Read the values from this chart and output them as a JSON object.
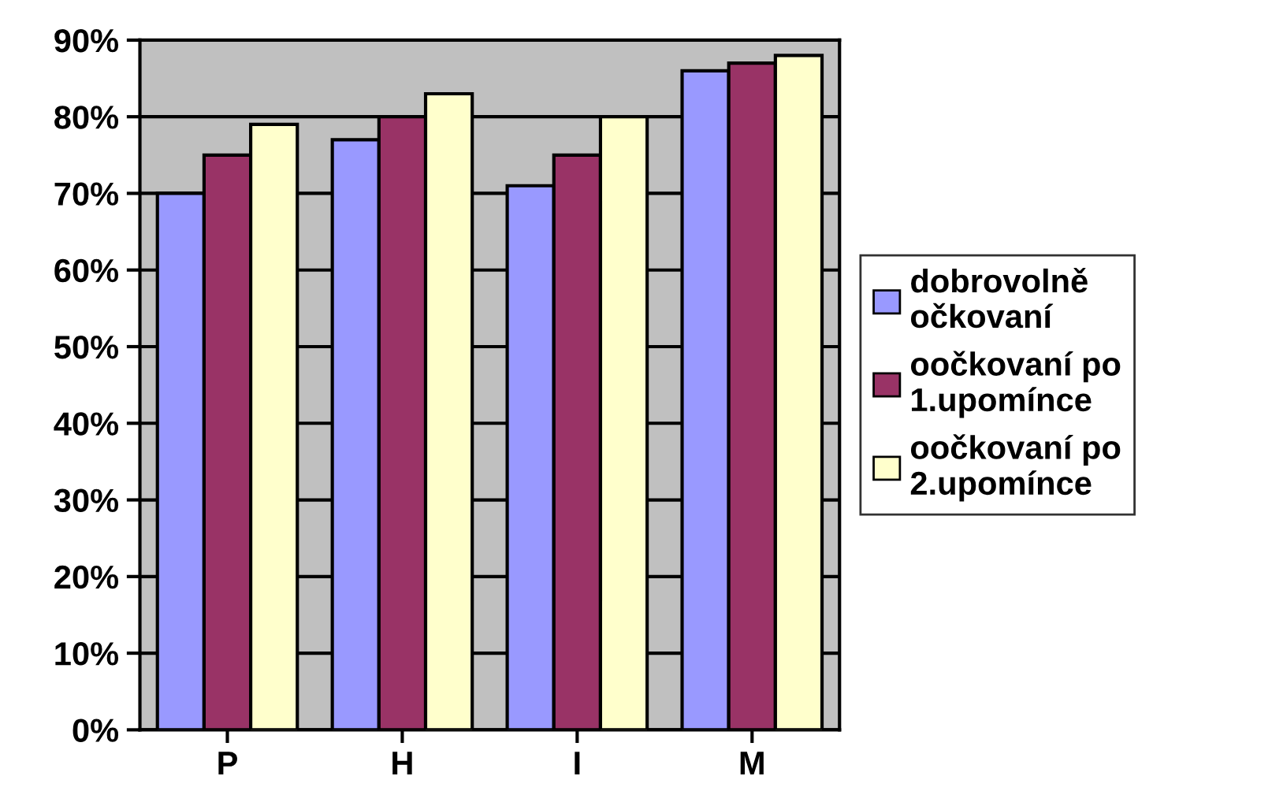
{
  "chart_data": {
    "type": "bar",
    "categories": [
      "P",
      "H",
      "I",
      "M"
    ],
    "series": [
      {
        "name": "dobrovolně očkovaní",
        "color": "#9999ff",
        "values": [
          70,
          77,
          71,
          86
        ]
      },
      {
        "name": "oočkovaní po 1.upomínce",
        "color": "#993366",
        "values": [
          75,
          80,
          75,
          87
        ]
      },
      {
        "name": "oočkovaní po 2.upomínce",
        "color": "#ffffcc",
        "values": [
          79,
          83,
          80,
          88
        ]
      }
    ],
    "ylim": [
      0,
      90
    ],
    "yticks": [
      {
        "value": 0,
        "label": "0%"
      },
      {
        "value": 10,
        "label": "10%"
      },
      {
        "value": 20,
        "label": "20%"
      },
      {
        "value": 30,
        "label": "30%"
      },
      {
        "value": 40,
        "label": "40%"
      },
      {
        "value": 50,
        "label": "50%"
      },
      {
        "value": 60,
        "label": "60%"
      },
      {
        "value": 70,
        "label": "70%"
      },
      {
        "value": 80,
        "label": "80%"
      },
      {
        "value": 90,
        "label": "90%"
      }
    ],
    "grid": "y",
    "legend": "right"
  }
}
